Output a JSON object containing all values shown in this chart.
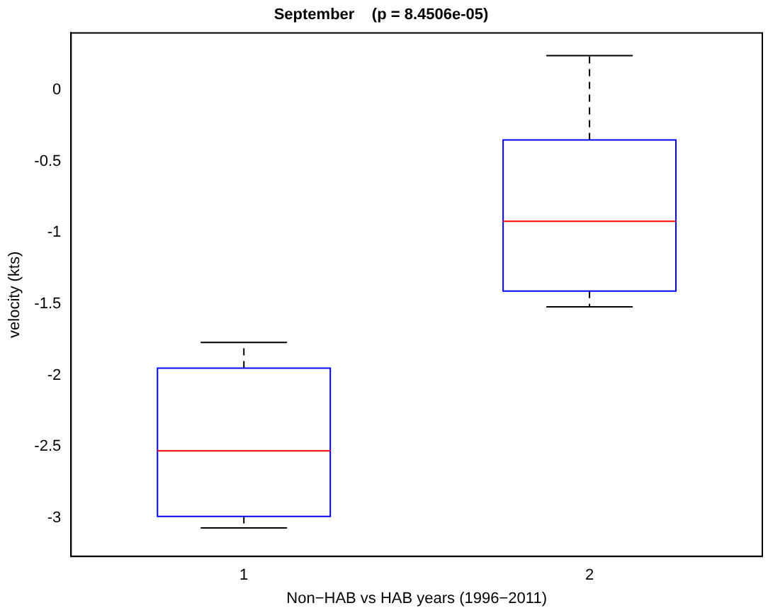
{
  "chart_data": {
    "type": "box",
    "title": "September    (p = 8.4506e-05)",
    "xlabel": "Non−HAB vs HAB years (1996−2011)",
    "ylabel": "velocity (kts)",
    "categories": [
      "1",
      "2"
    ],
    "boxes": [
      {
        "low": -3.07,
        "q1": -2.99,
        "median": -2.53,
        "q3": -1.95,
        "high": -1.77
      },
      {
        "low": -1.52,
        "q1": -1.41,
        "median": -0.92,
        "q3": -0.35,
        "high": 0.24
      }
    ],
    "color": "#0000ff",
    "ylim": [
      -3.27,
      0.4
    ],
    "yticks": [
      0,
      -0.5,
      -1,
      -1.5,
      -2,
      -2.5,
      -3
    ],
    "grid": false,
    "legend": false
  }
}
